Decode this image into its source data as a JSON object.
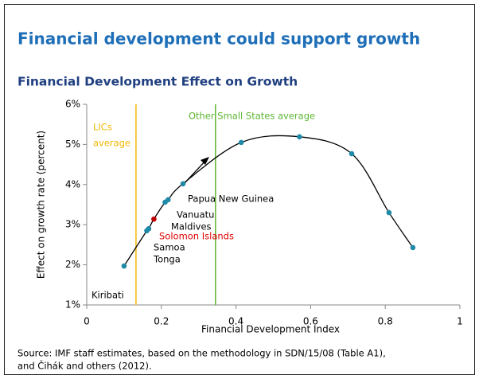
{
  "chart_data": {
    "type": "scatter",
    "title": "Financial development could support growth",
    "subtitle": "Financial Development Effect on Growth",
    "x_label": "Financial Development Index",
    "y_label": "Effect on growth rate (percent)",
    "xlim": [
      0,
      1
    ],
    "ylim": [
      1,
      6
    ],
    "xticks": [
      0,
      0.2,
      0.4,
      0.6,
      0.8,
      1
    ],
    "yticks": [
      {
        "value": 1,
        "label": "1%"
      },
      {
        "value": 2,
        "label": "2%"
      },
      {
        "value": 3,
        "label": "3%"
      },
      {
        "value": 4,
        "label": "4%"
      },
      {
        "value": 5,
        "label": "5%"
      },
      {
        "value": 6,
        "label": "6%"
      }
    ],
    "points": {
      "x": [
        0.1,
        0.161,
        0.166,
        0.18,
        0.21,
        0.218,
        0.258,
        0.414,
        0.57,
        0.71,
        0.81,
        0.874
      ],
      "y": [
        1.97,
        2.85,
        2.9,
        3.14,
        3.56,
        3.62,
        4.02,
        5.05,
        5.19,
        4.77,
        3.3,
        2.43
      ],
      "color": "#1f8aa8",
      "line_color": "#000000",
      "marker_colors": [
        "#1f8aa8",
        "#1f8aa8",
        "#1f8aa8",
        "#c00000",
        "#1f8aa8",
        "#1f8aa8",
        "#1f8aa8",
        "#1f8aa8",
        "#1f8aa8",
        "#1f8aa8",
        "#1f8aa8",
        "#1f8aa8"
      ]
    },
    "reference_lines": [
      {
        "x": 0.132,
        "label": [
          "LICs",
          "average"
        ],
        "color": "#f2b800"
      },
      {
        "x": 0.345,
        "label": [
          "Other Small States average"
        ],
        "color": "#5ab631"
      }
    ],
    "country_labels": [
      {
        "text": "Kiribati",
        "color": "#000000"
      },
      {
        "text": "Tonga",
        "color": "#000000"
      },
      {
        "text": "Samoa",
        "color": "#000000"
      },
      {
        "text": "Solomon Islands",
        "color": "#e00000"
      },
      {
        "text": "Maldives",
        "color": "#000000"
      },
      {
        "text": "Vanuatu",
        "color": "#000000"
      },
      {
        "text": "Papua New Guinea",
        "color": "#000000"
      }
    ],
    "source": [
      "Source: IMF staff estimates,  based on the methodology in SDN/15/08 (Table A1),",
      "and Čihák and others (2012)."
    ]
  }
}
